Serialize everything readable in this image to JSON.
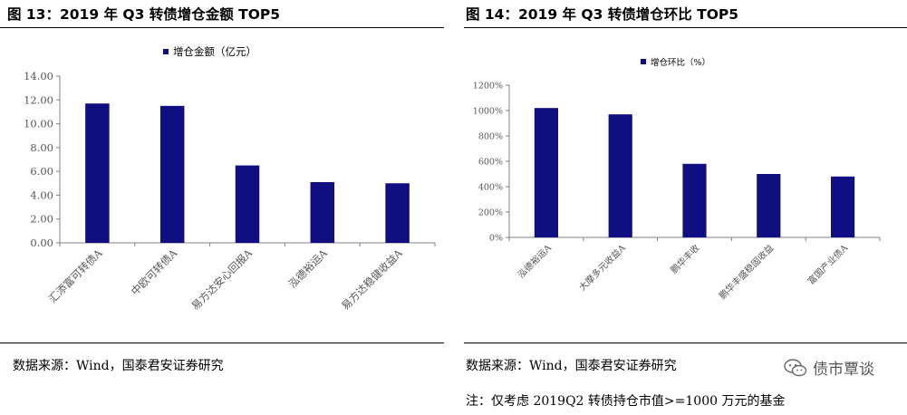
{
  "left_figure": {
    "title": "图 13：2019 年 Q3 转债增仓金额 TOP5",
    "source": "数据来源：Wind，国泰君安证券研究"
  },
  "right_figure": {
    "title": "图 14：2019 年 Q3 转债增仓环比 TOP5",
    "source": "数据来源：Wind，国泰君安证券研究",
    "note": "注：仅考虑 2019Q2 转债持仓市值>=1000 万元的基金"
  },
  "watermark": {
    "text": "债市覃谈",
    "icon": "wechat-icon"
  },
  "colors": {
    "bar": "#0f0f82",
    "axis": "#808080"
  },
  "chart_data": [
    {
      "id": "left",
      "type": "bar",
      "title": "",
      "legend": "增仓金额（亿元）",
      "legend_position": "top",
      "categories": [
        "汇添富可转债A",
        "中欧可转债A",
        "易方达安心回报A",
        "泓德裕运A",
        "易方达稳健收益A"
      ],
      "values": [
        11.7,
        11.5,
        6.5,
        5.1,
        5.0
      ],
      "yticks": [
        "0.00",
        "2.00",
        "4.00",
        "6.00",
        "8.00",
        "10.00",
        "12.00",
        "14.00"
      ],
      "ylim": [
        0,
        14
      ],
      "xlabel": "",
      "ylabel": "",
      "grid": false
    },
    {
      "id": "right",
      "type": "bar",
      "title": "",
      "legend": "增仓环比（%）",
      "legend_position": "top",
      "categories": [
        "泓德裕运A",
        "大摩多元收益A",
        "鹏华丰收",
        "鹏华丰盛稳固收益",
        "富国产业债A"
      ],
      "values": [
        1020,
        970,
        580,
        500,
        480
      ],
      "yticks": [
        "0%",
        "200%",
        "400%",
        "600%",
        "800%",
        "1000%",
        "1200%"
      ],
      "ylim": [
        0,
        1200
      ],
      "xlabel": "",
      "ylabel": "",
      "grid": false
    }
  ]
}
